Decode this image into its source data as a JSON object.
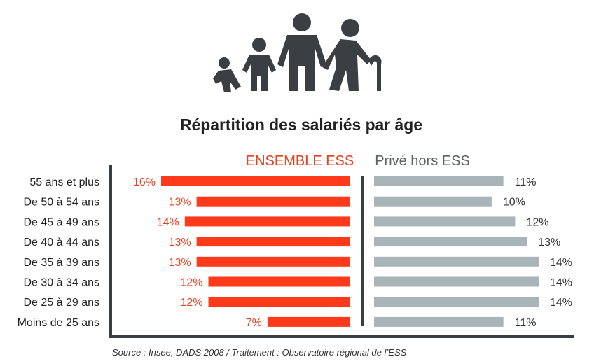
{
  "title": "Répartition des salariés par âge",
  "source": "Source : Insee, DADS 2008 / Traitement : Observatoire régional de l’ESS",
  "icon": "family-generations-icon",
  "colors": {
    "ess": "#ff3a1a",
    "ess_text": "#e8401f",
    "prive": "#a8b4b8",
    "dark": "#3b3f44",
    "frame": "#3a3f44"
  },
  "chart_data": {
    "type": "bar",
    "orientation": "horizontal-diverging",
    "title": "Répartition des salariés par âge",
    "categories": [
      "55 ans et plus",
      "De 50 à 54 ans",
      "De 45 à 49 ans",
      "De 40 à 44 ans",
      "De 35 à 39 ans",
      "De 30 à 34 ans",
      "De 25 à 29 ans",
      "Moins de 25 ans"
    ],
    "series": [
      {
        "name": "ENSEMBLE ESS",
        "values": [
          16,
          13,
          14,
          13,
          13,
          12,
          12,
          7
        ],
        "labels": [
          "16%",
          "13%",
          "14%",
          "13%",
          "13%",
          "12%",
          "12%",
          "7%"
        ]
      },
      {
        "name": "Privé hors ESS",
        "values": [
          11,
          10,
          12,
          13,
          14,
          14,
          14,
          11
        ],
        "labels": [
          "11%",
          "10%",
          "12%",
          "13%",
          "14%",
          "14%",
          "14%",
          "11%"
        ]
      }
    ],
    "unit": "%",
    "legend": "top",
    "grid": false
  }
}
